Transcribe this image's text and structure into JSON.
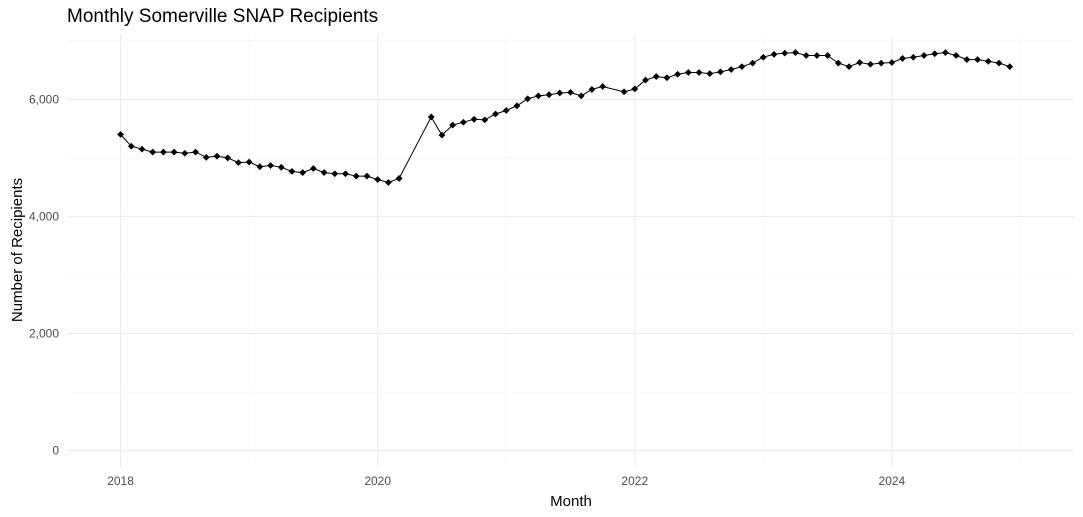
{
  "chart_data": {
    "type": "line",
    "title": "Monthly Somerville SNAP Recipients",
    "xlabel": "Month",
    "ylabel": "Number of Recipients",
    "x_ticks": [
      {
        "value": "2018-01",
        "label": "2018"
      },
      {
        "value": "2020-01",
        "label": "2020"
      },
      {
        "value": "2022-01",
        "label": "2022"
      },
      {
        "value": "2024-01",
        "label": "2024"
      }
    ],
    "y_ticks": [
      {
        "value": 0,
        "label": "0"
      },
      {
        "value": 2000,
        "label": "2,000"
      },
      {
        "value": 4000,
        "label": "4,000"
      },
      {
        "value": 6000,
        "label": "6,000"
      }
    ],
    "xlim": [
      "2017-08",
      "2025-06"
    ],
    "ylim": [
      -280,
      7100
    ],
    "grid": true,
    "series": [
      {
        "marker": "diamond",
        "color": "#000000",
        "points": [
          [
            "2018-01",
            5400
          ],
          [
            "2018-02",
            5200
          ],
          [
            "2018-03",
            5150
          ],
          [
            "2018-04",
            5100
          ],
          [
            "2018-05",
            5100
          ],
          [
            "2018-06",
            5100
          ],
          [
            "2018-07",
            5080
          ],
          [
            "2018-08",
            5100
          ],
          [
            "2018-09",
            5010
          ],
          [
            "2018-10",
            5030
          ],
          [
            "2018-11",
            5000
          ],
          [
            "2018-12",
            4920
          ],
          [
            "2019-01",
            4930
          ],
          [
            "2019-02",
            4850
          ],
          [
            "2019-03",
            4870
          ],
          [
            "2019-04",
            4840
          ],
          [
            "2019-05",
            4770
          ],
          [
            "2019-06",
            4750
          ],
          [
            "2019-07",
            4820
          ],
          [
            "2019-08",
            4750
          ],
          [
            "2019-09",
            4730
          ],
          [
            "2019-10",
            4730
          ],
          [
            "2019-11",
            4690
          ],
          [
            "2019-12",
            4690
          ],
          [
            "2020-01",
            4630
          ],
          [
            "2020-02",
            4580
          ],
          [
            "2020-03",
            4650
          ],
          [
            "2020-06",
            5700
          ],
          [
            "2020-07",
            5390
          ],
          [
            "2020-08",
            5560
          ],
          [
            "2020-09",
            5610
          ],
          [
            "2020-10",
            5660
          ],
          [
            "2020-11",
            5650
          ],
          [
            "2020-12",
            5750
          ],
          [
            "2021-01",
            5810
          ],
          [
            "2021-02",
            5890
          ],
          [
            "2021-03",
            6010
          ],
          [
            "2021-04",
            6060
          ],
          [
            "2021-05",
            6080
          ],
          [
            "2021-06",
            6110
          ],
          [
            "2021-07",
            6120
          ],
          [
            "2021-08",
            6060
          ],
          [
            "2021-09",
            6170
          ],
          [
            "2021-10",
            6220
          ],
          [
            "2021-12",
            6130
          ],
          [
            "2022-01",
            6180
          ],
          [
            "2022-02",
            6330
          ],
          [
            "2022-03",
            6390
          ],
          [
            "2022-04",
            6370
          ],
          [
            "2022-05",
            6430
          ],
          [
            "2022-06",
            6460
          ],
          [
            "2022-07",
            6460
          ],
          [
            "2022-08",
            6440
          ],
          [
            "2022-09",
            6470
          ],
          [
            "2022-10",
            6510
          ],
          [
            "2022-11",
            6560
          ],
          [
            "2022-12",
            6620
          ],
          [
            "2023-01",
            6720
          ],
          [
            "2023-02",
            6770
          ],
          [
            "2023-03",
            6790
          ],
          [
            "2023-04",
            6800
          ],
          [
            "2023-05",
            6750
          ],
          [
            "2023-06",
            6750
          ],
          [
            "2023-07",
            6750
          ],
          [
            "2023-08",
            6620
          ],
          [
            "2023-09",
            6560
          ],
          [
            "2023-10",
            6630
          ],
          [
            "2023-11",
            6600
          ],
          [
            "2023-12",
            6620
          ],
          [
            "2024-01",
            6630
          ],
          [
            "2024-02",
            6700
          ],
          [
            "2024-03",
            6720
          ],
          [
            "2024-04",
            6750
          ],
          [
            "2024-05",
            6780
          ],
          [
            "2024-06",
            6800
          ],
          [
            "2024-07",
            6750
          ],
          [
            "2024-08",
            6680
          ],
          [
            "2024-09",
            6680
          ],
          [
            "2024-10",
            6650
          ],
          [
            "2024-11",
            6620
          ],
          [
            "2024-12",
            6560
          ]
        ]
      }
    ]
  }
}
